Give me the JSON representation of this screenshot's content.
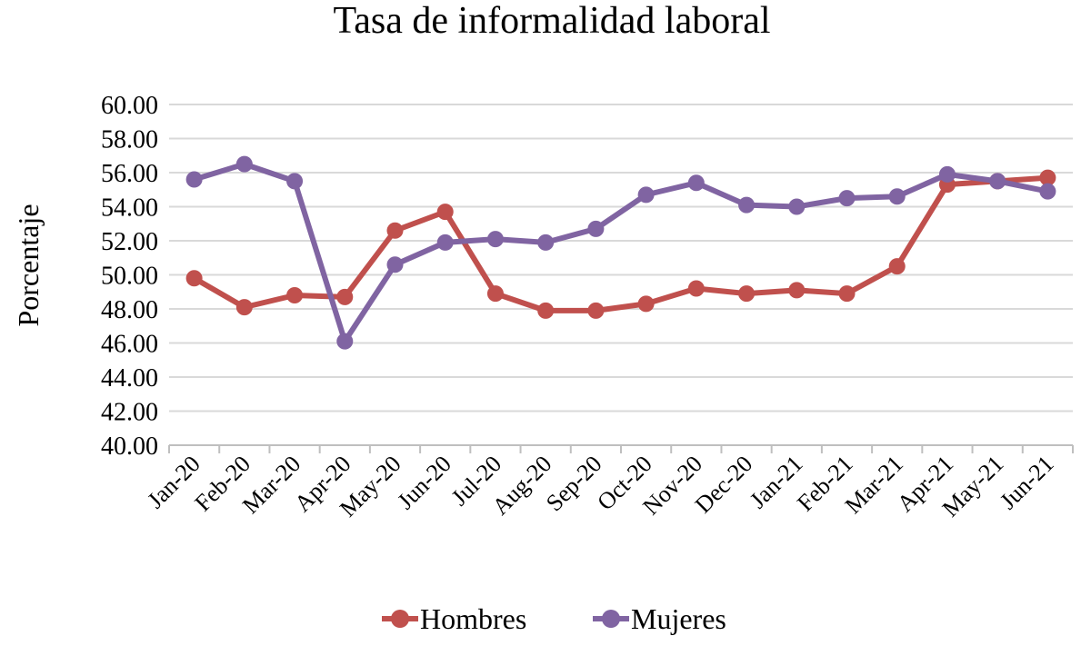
{
  "chart_data": {
    "type": "line",
    "title": "Tasa de informalidad laboral",
    "xlabel": "",
    "ylabel": "Porcentaje",
    "ylim": [
      40,
      60
    ],
    "yticks": [
      "40.00",
      "42.00",
      "44.00",
      "46.00",
      "48.00",
      "50.00",
      "52.00",
      "54.00",
      "56.00",
      "58.00",
      "60.00"
    ],
    "grid": true,
    "legend_position": "bottom",
    "categories": [
      "Jan-20",
      "Feb-20",
      "Mar-20",
      "Apr-20",
      "May-20",
      "Jun-20",
      "Jul-20",
      "Aug-20",
      "Sep-20",
      "Oct-20",
      "Nov-20",
      "Dec-20",
      "Jan-21",
      "Feb-21",
      "Mar-21",
      "Apr-21",
      "May-21",
      "Jun-21"
    ],
    "series": [
      {
        "name": "Hombres",
        "color": "#C0504D",
        "values": [
          49.8,
          48.1,
          48.8,
          48.7,
          52.6,
          53.7,
          48.9,
          47.9,
          47.9,
          48.3,
          49.2,
          48.9,
          49.1,
          48.9,
          50.5,
          55.3,
          55.5,
          55.7
        ]
      },
      {
        "name": "Mujeres",
        "color": "#8064A2",
        "values": [
          55.6,
          56.5,
          55.5,
          46.1,
          50.6,
          51.9,
          52.1,
          51.9,
          52.7,
          54.7,
          55.4,
          54.1,
          54.0,
          54.5,
          54.6,
          55.9,
          55.5,
          54.9
        ]
      }
    ]
  }
}
